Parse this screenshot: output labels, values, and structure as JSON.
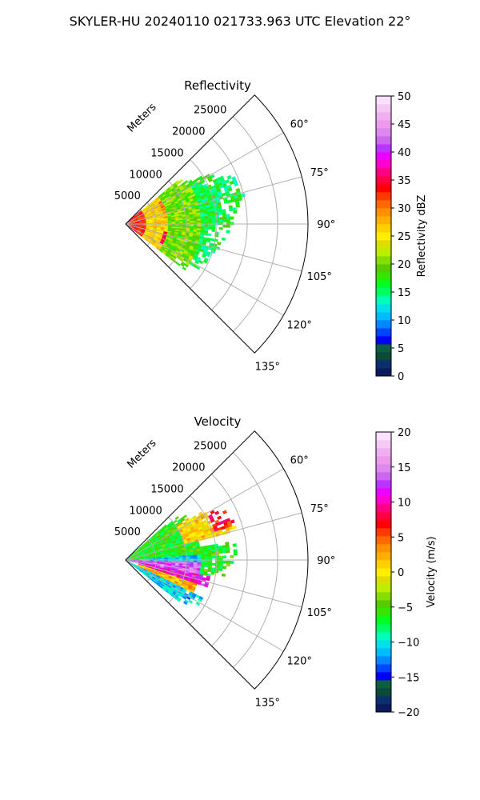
{
  "figure": {
    "title": "SKYLER-HU  20240110  021733.963 UTC Elevation 22°"
  },
  "colors": {
    "reflectivity_scale": [
      "#0a1a5c",
      "#0b2e6e",
      "#0a4a3a",
      "#0b5e40",
      "#0000ff",
      "#0044ff",
      "#0088ff",
      "#00bbff",
      "#00e0e8",
      "#00ffbb",
      "#00ff66",
      "#00ff22",
      "#33e600",
      "#55cc00",
      "#88dd00",
      "#bbee00",
      "#dddd00",
      "#ffee00",
      "#ffd000",
      "#ffb000",
      "#ff9000",
      "#ff6a00",
      "#ff3a00",
      "#ff0000",
      "#ff0040",
      "#ff0080",
      "#ff00cc",
      "#ee00ff",
      "#bb33ff",
      "#cc66ee",
      "#dd88ee",
      "#ee99ee",
      "#f0b0f0",
      "#f5c8f5",
      "#fbe0fb"
    ],
    "velocity_scale": [
      "#0a1a5c",
      "#0b2e6e",
      "#0a4a3a",
      "#0b5e40",
      "#0000ff",
      "#0044ff",
      "#0088ff",
      "#00bbff",
      "#00e0e8",
      "#00ffbb",
      "#00ff66",
      "#00ff22",
      "#33e600",
      "#55cc00",
      "#88dd00",
      "#bbee00",
      "#dddd00",
      "#ffee00",
      "#ffd000",
      "#ffb000",
      "#ff9000",
      "#ff6a00",
      "#ff3a00",
      "#ff0000",
      "#ff0040",
      "#ff0080",
      "#ff00cc",
      "#ee00ff",
      "#bb33ff",
      "#cc66ee",
      "#dd88ee",
      "#ee99ee",
      "#f0b0f0",
      "#f5c8f5",
      "#fbe0fb"
    ]
  },
  "chart_data": [
    {
      "type": "heatmap",
      "projection": "polar-sector",
      "title": "Reflectivity",
      "range_axis_label": "Meters",
      "range_ticks": [
        5000,
        10000,
        15000,
        20000,
        25000
      ],
      "range_tick_labels": [
        "5000",
        "10000",
        "15000",
        "20000",
        "25000"
      ],
      "range_max": 30000,
      "azimuth_range_deg": [
        45,
        135
      ],
      "azimuth_ticks_deg": [
        60,
        75,
        90,
        105,
        120,
        135
      ],
      "azimuth_tick_labels": [
        "60°",
        "75°",
        "90°",
        "105°",
        "120°",
        "135°"
      ],
      "grid": true,
      "colorbar": {
        "label": "Reflectivity dBZ",
        "range": [
          0,
          50
        ],
        "ticks": [
          0,
          5,
          10,
          15,
          20,
          25,
          30,
          35,
          40,
          45,
          50
        ],
        "tick_labels": [
          "0",
          "5",
          "10",
          "15",
          "20",
          "25",
          "30",
          "35",
          "40",
          "45",
          "50"
        ]
      },
      "echo_extent_m_by_azimuth": [
        [
          48,
          10000
        ],
        [
          55,
          13000
        ],
        [
          60,
          17000
        ],
        [
          65,
          19000
        ],
        [
          70,
          19500
        ],
        [
          75,
          20000
        ],
        [
          80,
          19000
        ],
        [
          85,
          18500
        ],
        [
          90,
          17500
        ],
        [
          95,
          16500
        ],
        [
          100,
          16000
        ],
        [
          105,
          16000
        ],
        [
          110,
          15500
        ],
        [
          115,
          15000
        ],
        [
          120,
          14000
        ],
        [
          125,
          12000
        ]
      ],
      "field_regions": [
        {
          "azimuth_deg": [
            48,
            135
          ],
          "range_m": [
            0,
            3000
          ],
          "value": 33
        },
        {
          "azimuth_deg": [
            50,
            130
          ],
          "range_m": [
            3000,
            7000
          ],
          "value": 26
        },
        {
          "azimuth_deg": [
            55,
            80
          ],
          "range_m": [
            6000,
            9000
          ],
          "value": 30
        },
        {
          "azimuth_deg": [
            100,
            118
          ],
          "range_m": [
            6000,
            10000
          ],
          "value": 34
        },
        {
          "azimuth_deg": [
            50,
            128
          ],
          "range_m": [
            7000,
            12000
          ],
          "value": 20
        },
        {
          "azimuth_deg": [
            55,
            125
          ],
          "range_m": [
            12000,
            20000
          ],
          "value": 16
        }
      ]
    },
    {
      "type": "heatmap",
      "projection": "polar-sector",
      "title": "Velocity",
      "range_axis_label": "Meters",
      "range_ticks": [
        5000,
        10000,
        15000,
        20000,
        25000
      ],
      "range_tick_labels": [
        "5000",
        "10000",
        "15000",
        "20000",
        "25000"
      ],
      "range_max": 30000,
      "azimuth_range_deg": [
        45,
        135
      ],
      "azimuth_ticks_deg": [
        60,
        75,
        90,
        105,
        120,
        135
      ],
      "azimuth_tick_labels": [
        "60°",
        "75°",
        "90°",
        "105°",
        "120°",
        "135°"
      ],
      "grid": true,
      "colorbar": {
        "label": "Velocity (m/s)",
        "range": [
          -20,
          20
        ],
        "ticks": [
          -20,
          -15,
          -10,
          -5,
          0,
          5,
          10,
          15,
          20
        ],
        "tick_labels": [
          "−20",
          "−15",
          "−10",
          "−5",
          "0",
          "5",
          "10",
          "15",
          "20"
        ]
      },
      "echo_extent_m_by_azimuth": [
        [
          48,
          10000
        ],
        [
          55,
          13000
        ],
        [
          60,
          17000
        ],
        [
          65,
          19000
        ],
        [
          70,
          19500
        ],
        [
          75,
          20000
        ],
        [
          80,
          19000
        ],
        [
          85,
          18500
        ],
        [
          90,
          17500
        ],
        [
          95,
          16500
        ],
        [
          100,
          16000
        ],
        [
          105,
          16000
        ],
        [
          110,
          15500
        ],
        [
          115,
          15000
        ],
        [
          120,
          14000
        ],
        [
          125,
          12000
        ]
      ],
      "field_regions": [
        {
          "azimuth_deg": [
            48,
            85
          ],
          "range_m": [
            0,
            12000
          ],
          "value": -6
        },
        {
          "azimuth_deg": [
            55,
            75
          ],
          "range_m": [
            10000,
            20000
          ],
          "value": 1
        },
        {
          "azimuth_deg": [
            60,
            72
          ],
          "range_m": [
            15000,
            20000
          ],
          "value": 7
        },
        {
          "azimuth_deg": [
            85,
            92
          ],
          "range_m": [
            1000,
            12000
          ],
          "value": -11
        },
        {
          "azimuth_deg": [
            92,
            100
          ],
          "range_m": [
            0,
            14000
          ],
          "value": 14
        },
        {
          "azimuth_deg": [
            100,
            108
          ],
          "range_m": [
            2000,
            14000
          ],
          "value": 11
        },
        {
          "azimuth_deg": [
            108,
            115
          ],
          "range_m": [
            2000,
            12000
          ],
          "value": 2
        },
        {
          "azimuth_deg": [
            115,
            135
          ],
          "range_m": [
            0,
            14000
          ],
          "value": -11
        },
        {
          "azimuth_deg": [
            80,
            100
          ],
          "range_m": [
            12000,
            18000
          ],
          "value": -6
        }
      ]
    }
  ]
}
